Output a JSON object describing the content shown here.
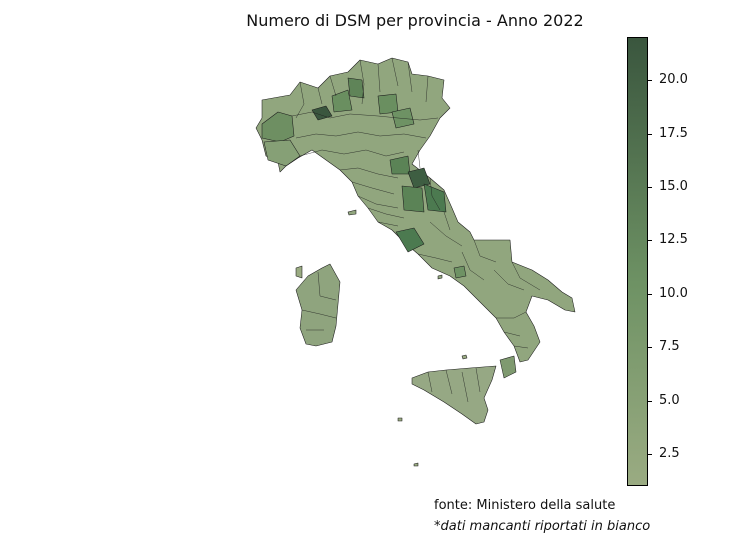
{
  "title": "Numero di DSM per provincia - Anno 2022",
  "colorbar": {
    "ticks": [
      "2.5",
      "5.0",
      "7.5",
      "10.0",
      "12.5",
      "15.0",
      "17.5",
      "20.0"
    ],
    "min_value": 1,
    "max_value": 22,
    "color_low": "#9aab82",
    "color_mid": "#6e9264",
    "color_high": "#3a563e"
  },
  "footer": {
    "source": "fonte: Ministero della salute",
    "note": "*dati mancanti riportati in bianco"
  }
}
